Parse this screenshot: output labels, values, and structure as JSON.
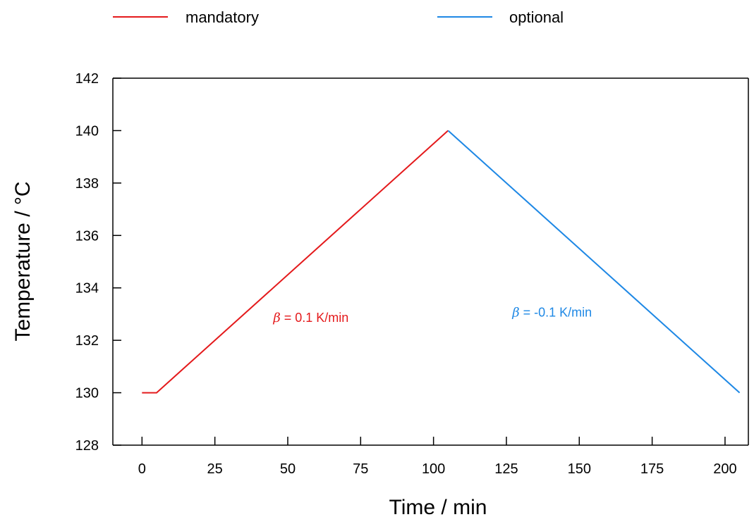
{
  "chart_data": {
    "type": "line",
    "title": "",
    "xlabel": "Time / min",
    "ylabel": "Temperature / °C",
    "xlim": [
      -10,
      208
    ],
    "ylim": [
      128,
      142
    ],
    "xticks": [
      0,
      25,
      50,
      75,
      100,
      125,
      150,
      175,
      200
    ],
    "yticks": [
      128,
      130,
      132,
      134,
      136,
      138,
      140,
      142
    ],
    "legend_position": "top",
    "grid": false,
    "series": [
      {
        "name": "mandatory",
        "color": "#e41a1c",
        "x": [
          0,
          5,
          105
        ],
        "y": [
          130,
          130,
          140
        ]
      },
      {
        "name": "optional",
        "color": "#1e88e5",
        "x": [
          105,
          205
        ],
        "y": [
          140,
          130
        ]
      }
    ],
    "annotations": [
      {
        "text_symbol": "β",
        "text_rest": " = 0.1 K/min",
        "x": 45,
        "y": 132.7,
        "color": "#e41a1c"
      },
      {
        "text_symbol": "β",
        "text_rest": " = -0.1 K/min",
        "x": 127,
        "y": 132.9,
        "color": "#1e88e5"
      }
    ]
  }
}
